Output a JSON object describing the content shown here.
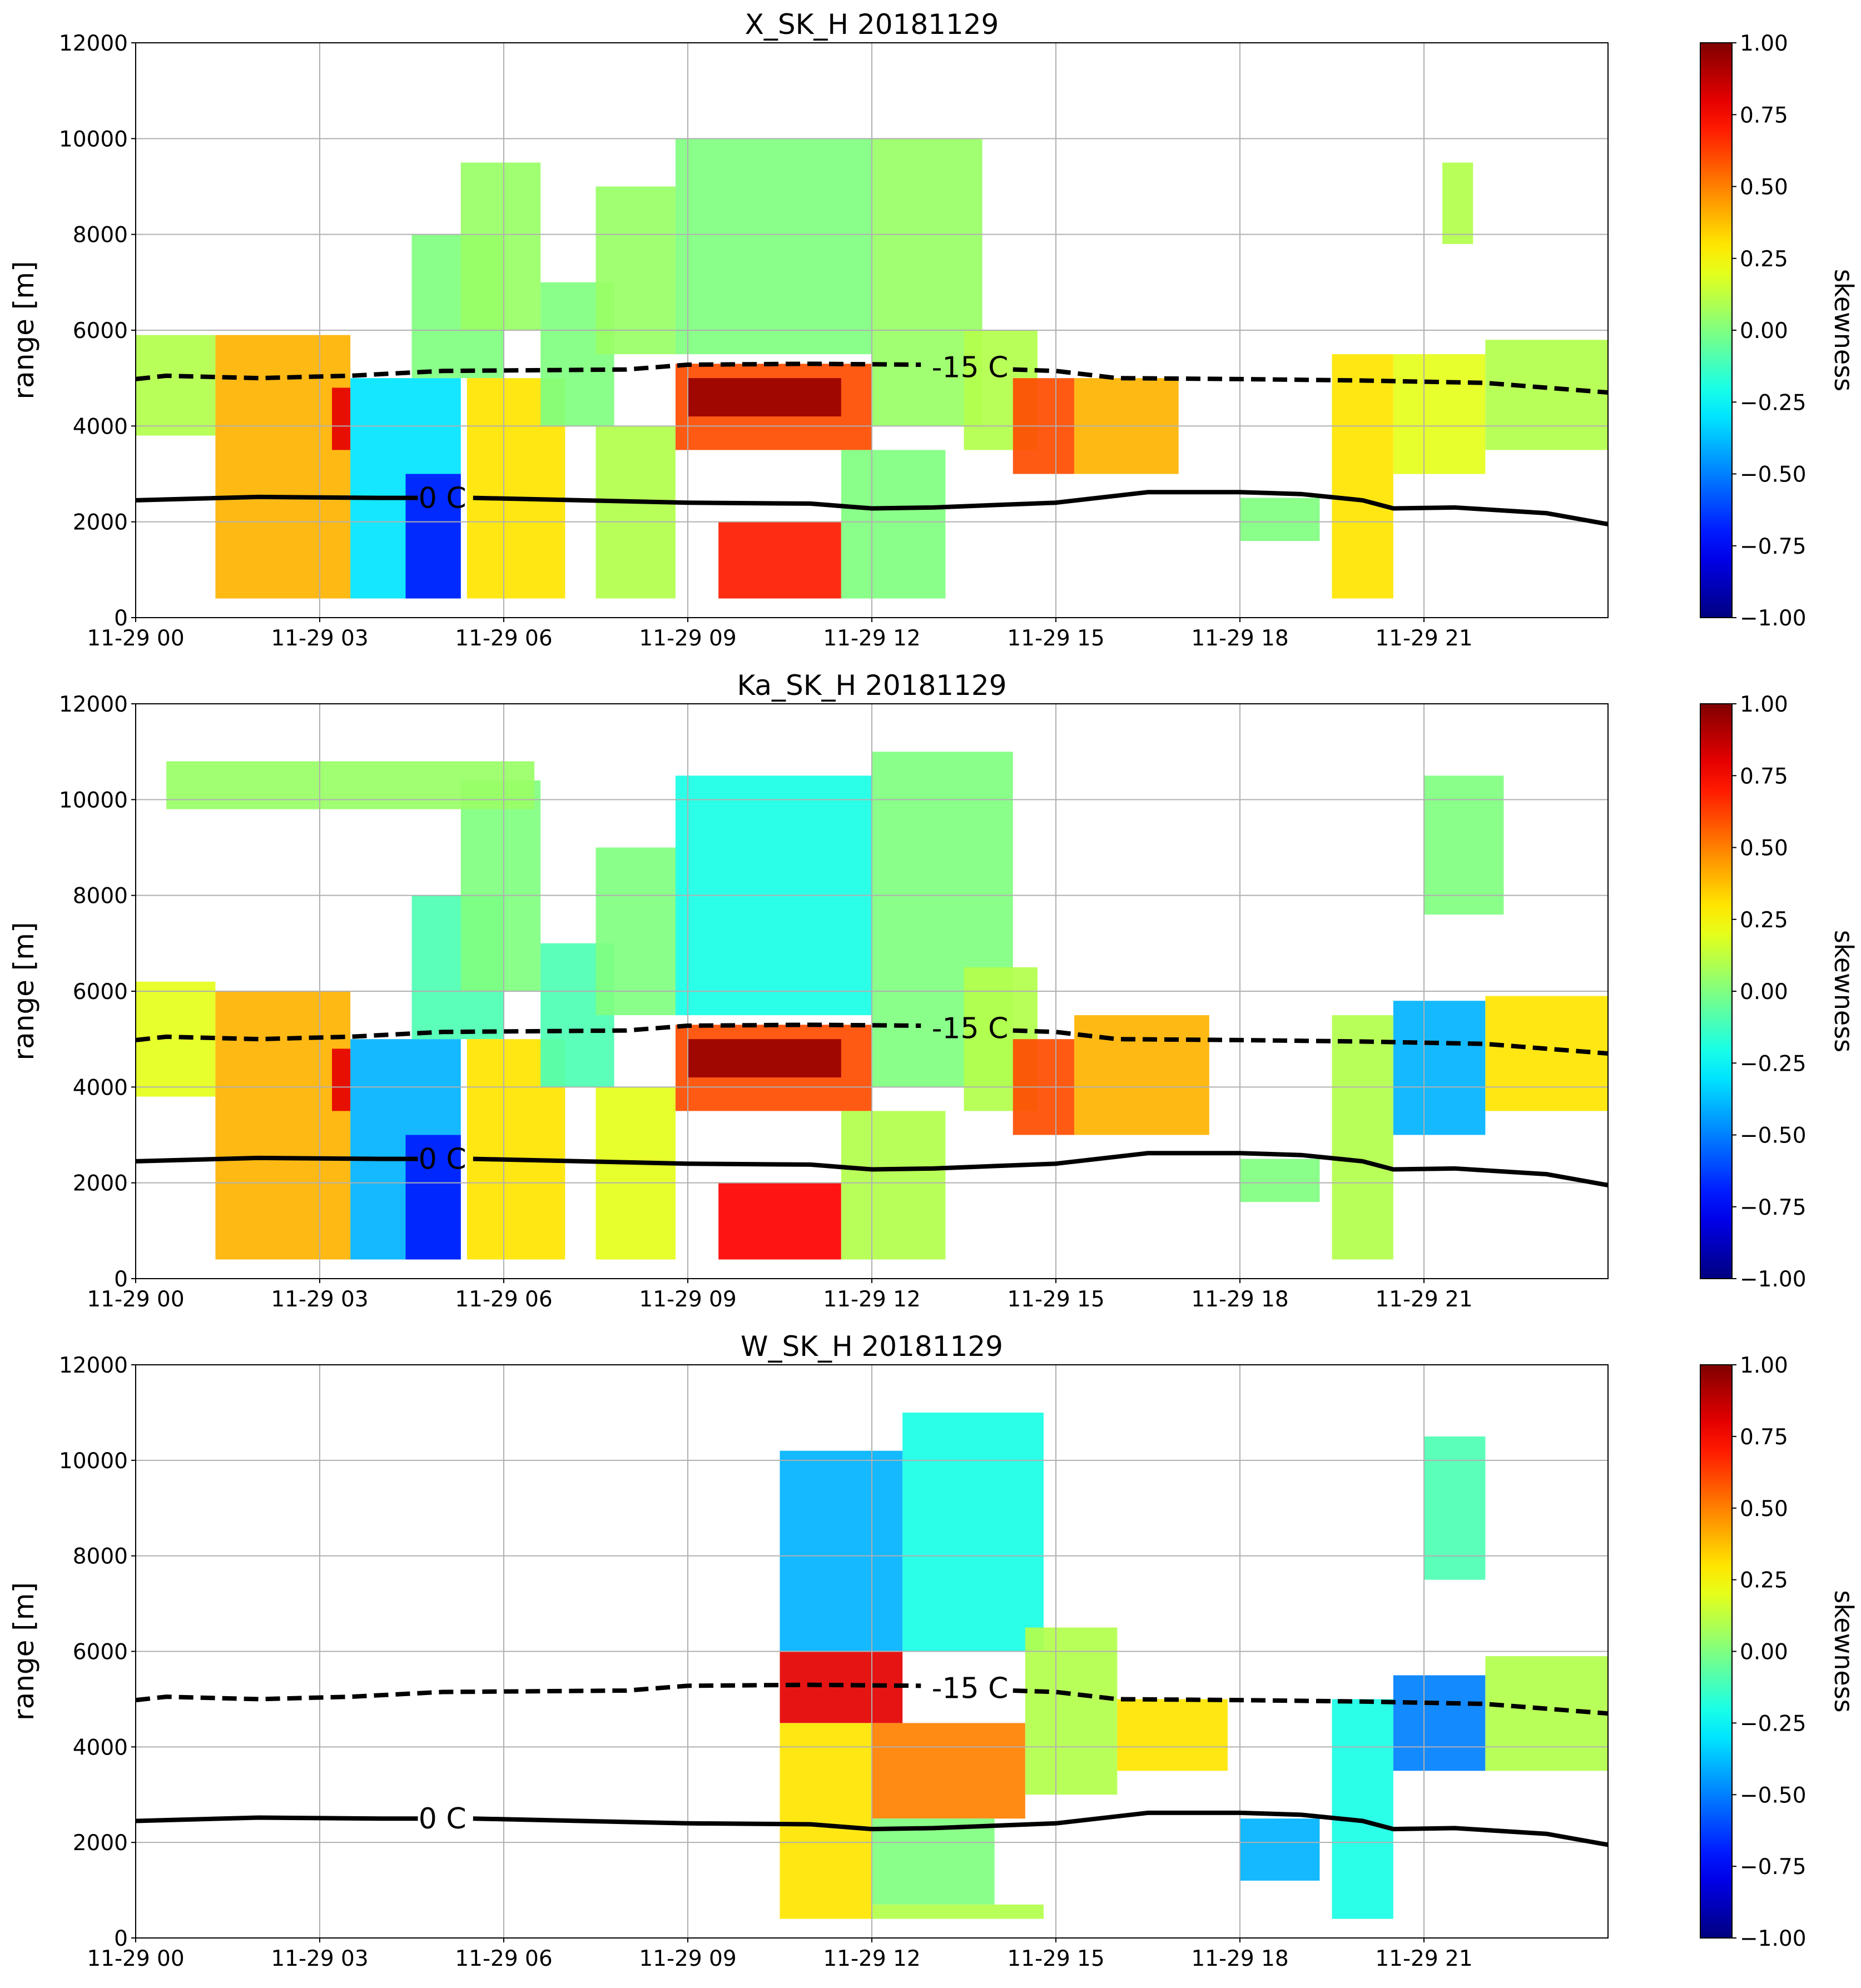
{
  "chart_data": [
    {
      "type": "heatmap",
      "title": "X_SK_H 20181129",
      "ylabel": "range [m]",
      "grid": true,
      "xlim": [
        0,
        24
      ],
      "xticks": [
        {
          "value": 0,
          "label": "11-29 00"
        },
        {
          "value": 3,
          "label": "11-29 03"
        },
        {
          "value": 6,
          "label": "11-29 06"
        },
        {
          "value": 9,
          "label": "11-29 09"
        },
        {
          "value": 12,
          "label": "11-29 12"
        },
        {
          "value": 15,
          "label": "11-29 15"
        },
        {
          "value": 18,
          "label": "11-29 18"
        },
        {
          "value": 21,
          "label": "11-29 21"
        }
      ],
      "ylim": [
        0,
        12000
      ],
      "yticks": [
        0,
        2000,
        4000,
        6000,
        8000,
        10000,
        12000
      ],
      "colorbar": {
        "label": "skewness",
        "colormap": "jet",
        "lim": [
          -1,
          1
        ],
        "ticks": [
          {
            "value": 1,
            "label": "1.00"
          },
          {
            "value": 0.75,
            "label": "0.75"
          },
          {
            "value": 0.5,
            "label": "0.50"
          },
          {
            "value": 0.25,
            "label": "0.25"
          },
          {
            "value": 0,
            "label": "0.00"
          },
          {
            "value": -0.25,
            "label": "−0.25"
          },
          {
            "value": -0.5,
            "label": "−0.50"
          },
          {
            "value": -0.75,
            "label": "−0.75"
          },
          {
            "value": -1,
            "label": "−1.00"
          }
        ]
      },
      "cells": {
        "x0": [
          0,
          1.3,
          3.2,
          3.5,
          4.4,
          4.5,
          5.3,
          5.4,
          6.6,
          7.5,
          7.5,
          8.8,
          12,
          8.8,
          9.0,
          9.5,
          11.5,
          13.5,
          14.3,
          15.3,
          18,
          19.5,
          20.5,
          22,
          21.3
        ],
        "x1": [
          1.3,
          3.5,
          3.5,
          5.3,
          5.3,
          6.0,
          6.6,
          7.0,
          7.8,
          8.8,
          8.8,
          12,
          13.8,
          12,
          11.5,
          11.5,
          13.2,
          14.7,
          15.3,
          17,
          19.3,
          20.5,
          22,
          24,
          21.8
        ],
        "y0": [
          3800,
          400,
          3500,
          400,
          400,
          5000,
          6000,
          400,
          4000,
          5500,
          400,
          5500,
          4000,
          3500,
          4200,
          400,
          400,
          3500,
          3000,
          3000,
          1600,
          400,
          3000,
          3500,
          7800
        ],
        "y1": [
          5900,
          5900,
          4800,
          5000,
          3000,
          8000,
          9500,
          5000,
          7000,
          9000,
          4000,
          10000,
          10000,
          5300,
          5000,
          2000,
          3500,
          6000,
          5000,
          5000,
          2500,
          5500,
          5500,
          5800,
          9500
        ],
        "values": [
          0.1,
          0.4,
          0.8,
          -0.3,
          -0.7,
          0,
          0.05,
          0.3,
          0,
          0.05,
          0.1,
          0,
          0.05,
          0.6,
          0.95,
          0.7,
          0,
          0.1,
          0.6,
          0.4,
          0,
          0.3,
          0.2,
          0.1,
          0.1
        ]
      },
      "series": [
        {
          "name": "0 C",
          "style": "solid",
          "color": "#000000",
          "x": [
            0,
            2,
            4,
            4.6,
            5.0,
            5.5,
            9,
            11,
            12,
            13,
            15,
            16.5,
            18,
            19,
            20,
            20.5,
            21.5,
            23,
            24
          ],
          "values": [
            2450,
            2520,
            2500,
            2500,
            null,
            2500,
            2400,
            2380,
            2280,
            2300,
            2400,
            2620,
            2620,
            2580,
            2450,
            2280,
            2300,
            2180,
            1950
          ]
        },
        {
          "name": "-15 C",
          "style": "dashed",
          "color": "#000000",
          "x": [
            0,
            0.5,
            2,
            3.5,
            5,
            8,
            9,
            11,
            12.8,
            13.6,
            14.3,
            15,
            16,
            18,
            20,
            22,
            24
          ],
          "values": [
            4980,
            5050,
            5000,
            5050,
            5150,
            5180,
            5280,
            5300,
            5280,
            null,
            5180,
            5150,
            5000,
            4980,
            4950,
            4900,
            4700
          ]
        }
      ]
    },
    {
      "type": "heatmap",
      "title": "Ka_SK_H 20181129",
      "ylabel": "range [m]",
      "grid": true,
      "xlim": [
        0,
        24
      ],
      "xticks": [
        {
          "value": 0,
          "label": "11-29 00"
        },
        {
          "value": 3,
          "label": "11-29 03"
        },
        {
          "value": 6,
          "label": "11-29 06"
        },
        {
          "value": 9,
          "label": "11-29 09"
        },
        {
          "value": 12,
          "label": "11-29 12"
        },
        {
          "value": 15,
          "label": "11-29 15"
        },
        {
          "value": 18,
          "label": "11-29 18"
        },
        {
          "value": 21,
          "label": "11-29 21"
        }
      ],
      "ylim": [
        0,
        12000
      ],
      "yticks": [
        0,
        2000,
        4000,
        6000,
        8000,
        10000,
        12000
      ],
      "colorbar": {
        "label": "skewness",
        "colormap": "jet",
        "lim": [
          -1,
          1
        ],
        "ticks": [
          {
            "value": 1,
            "label": "1.00"
          },
          {
            "value": 0.75,
            "label": "0.75"
          },
          {
            "value": 0.5,
            "label": "0.50"
          },
          {
            "value": 0.25,
            "label": "0.25"
          },
          {
            "value": 0,
            "label": "0.00"
          },
          {
            "value": -0.25,
            "label": "−0.25"
          },
          {
            "value": -0.5,
            "label": "−0.50"
          },
          {
            "value": -0.75,
            "label": "−0.75"
          },
          {
            "value": -1,
            "label": "−1.00"
          }
        ]
      },
      "cells": {
        "x0": [
          0,
          1.3,
          3.2,
          3.5,
          4.4,
          4.5,
          5.3,
          5.4,
          6.6,
          7.5,
          7.5,
          8.8,
          12,
          8.8,
          9.0,
          9.5,
          11.5,
          13.5,
          14.3,
          15.3,
          18,
          19.5,
          20.5,
          22,
          21.0,
          0.5
        ],
        "x1": [
          1.3,
          3.5,
          3.5,
          5.3,
          5.3,
          6.0,
          6.6,
          7.0,
          7.8,
          8.8,
          8.8,
          12,
          14.3,
          12,
          11.5,
          11.5,
          13.2,
          14.7,
          15.3,
          17.5,
          19.3,
          20.5,
          22,
          24,
          22.3,
          6.5
        ],
        "y0": [
          3800,
          400,
          3500,
          400,
          400,
          5000,
          6000,
          400,
          4000,
          5500,
          400,
          5500,
          4000,
          3500,
          4200,
          400,
          400,
          3500,
          3000,
          3000,
          1600,
          400,
          3000,
          3500,
          7600,
          9800
        ],
        "y1": [
          6200,
          6000,
          4800,
          5000,
          3000,
          8000,
          10400,
          5000,
          7000,
          9000,
          4000,
          10500,
          11000,
          5300,
          5000,
          2000,
          3500,
          6500,
          5000,
          5500,
          2500,
          5500,
          5800,
          5900,
          10500,
          10800
        ],
        "values": [
          0.2,
          0.4,
          0.8,
          -0.4,
          -0.7,
          -0.1,
          0,
          0.3,
          -0.1,
          0,
          0.2,
          -0.2,
          0,
          0.6,
          0.95,
          0.75,
          0.1,
          0.1,
          0.6,
          0.4,
          0,
          0.1,
          -0.4,
          0.3,
          0,
          0.05
        ]
      },
      "series": [
        {
          "name": "0 C",
          "style": "solid",
          "color": "#000000",
          "x": [
            0,
            2,
            4,
            4.6,
            5.0,
            5.5,
            9,
            11,
            12,
            13,
            15,
            16.5,
            18,
            19,
            20,
            20.5,
            21.5,
            23,
            24
          ],
          "values": [
            2450,
            2520,
            2500,
            2500,
            null,
            2500,
            2400,
            2380,
            2280,
            2300,
            2400,
            2620,
            2620,
            2580,
            2450,
            2280,
            2300,
            2180,
            1950
          ]
        },
        {
          "name": "-15 C",
          "style": "dashed",
          "color": "#000000",
          "x": [
            0,
            0.5,
            2,
            3.5,
            5,
            8,
            9,
            11,
            12.8,
            13.6,
            14.3,
            15,
            16,
            18,
            20,
            22,
            24
          ],
          "values": [
            4980,
            5050,
            5000,
            5050,
            5150,
            5180,
            5280,
            5300,
            5280,
            null,
            5180,
            5150,
            5000,
            4980,
            4950,
            4900,
            4700
          ]
        }
      ]
    },
    {
      "type": "heatmap",
      "title": "W_SK_H 20181129",
      "ylabel": "range [m]",
      "grid": true,
      "xlim": [
        0,
        24
      ],
      "xticks": [
        {
          "value": 0,
          "label": "11-29 00"
        },
        {
          "value": 3,
          "label": "11-29 03"
        },
        {
          "value": 6,
          "label": "11-29 06"
        },
        {
          "value": 9,
          "label": "11-29 09"
        },
        {
          "value": 12,
          "label": "11-29 12"
        },
        {
          "value": 15,
          "label": "11-29 15"
        },
        {
          "value": 18,
          "label": "11-29 18"
        },
        {
          "value": 21,
          "label": "11-29 21"
        }
      ],
      "ylim": [
        0,
        12000
      ],
      "yticks": [
        0,
        2000,
        4000,
        6000,
        8000,
        10000,
        12000
      ],
      "colorbar": {
        "label": "skewness",
        "colormap": "jet",
        "lim": [
          -1,
          1
        ],
        "ticks": [
          {
            "value": 1,
            "label": "1.00"
          },
          {
            "value": 0.75,
            "label": "0.75"
          },
          {
            "value": 0.5,
            "label": "0.50"
          },
          {
            "value": 0.25,
            "label": "0.25"
          },
          {
            "value": 0,
            "label": "0.00"
          },
          {
            "value": -0.25,
            "label": "−0.25"
          },
          {
            "value": -0.5,
            "label": "−0.50"
          },
          {
            "value": -0.75,
            "label": "−0.75"
          },
          {
            "value": -1,
            "label": "−1.00"
          }
        ]
      },
      "cells": {
        "x0": [
          10.5,
          12.5,
          10.5,
          10.5,
          12,
          12,
          14.5,
          16,
          18,
          19.5,
          20.5,
          22,
          21.0,
          12
        ],
        "x1": [
          12.5,
          14.8,
          12.5,
          12,
          14.5,
          14,
          16,
          17.8,
          19.3,
          20.5,
          22,
          24,
          22.0,
          14.8
        ],
        "y0": [
          6000,
          6000,
          4500,
          400,
          2500,
          700,
          3000,
          3500,
          1200,
          400,
          3500,
          3500,
          7500,
          400
        ],
        "y1": [
          10200,
          11000,
          6000,
          4500,
          4500,
          2500,
          6500,
          5000,
          2500,
          5000,
          5500,
          5900,
          10500,
          700
        ],
        "values": [
          -0.4,
          -0.2,
          0.8,
          0.3,
          0.5,
          0,
          0.1,
          0.3,
          -0.4,
          -0.2,
          -0.5,
          0.1,
          -0.1,
          0.1
        ]
      },
      "series": [
        {
          "name": "0 C",
          "style": "solid",
          "color": "#000000",
          "x": [
            0,
            2,
            4,
            4.6,
            5.0,
            5.5,
            9,
            11,
            12,
            13,
            15,
            16.5,
            18,
            19,
            20,
            20.5,
            21.5,
            23,
            24
          ],
          "values": [
            2450,
            2520,
            2500,
            2500,
            null,
            2500,
            2400,
            2380,
            2280,
            2300,
            2400,
            2620,
            2620,
            2580,
            2450,
            2280,
            2300,
            2180,
            1950
          ]
        },
        {
          "name": "-15 C",
          "style": "dashed",
          "color": "#000000",
          "x": [
            0,
            0.5,
            2,
            3.5,
            5,
            8,
            9,
            11,
            12.8,
            13.6,
            14.3,
            15,
            16,
            18,
            20,
            22,
            24
          ],
          "values": [
            4980,
            5050,
            5000,
            5050,
            5150,
            5180,
            5280,
            5300,
            5280,
            null,
            5180,
            5150,
            5000,
            4980,
            4950,
            4900,
            4700
          ]
        }
      ]
    }
  ]
}
